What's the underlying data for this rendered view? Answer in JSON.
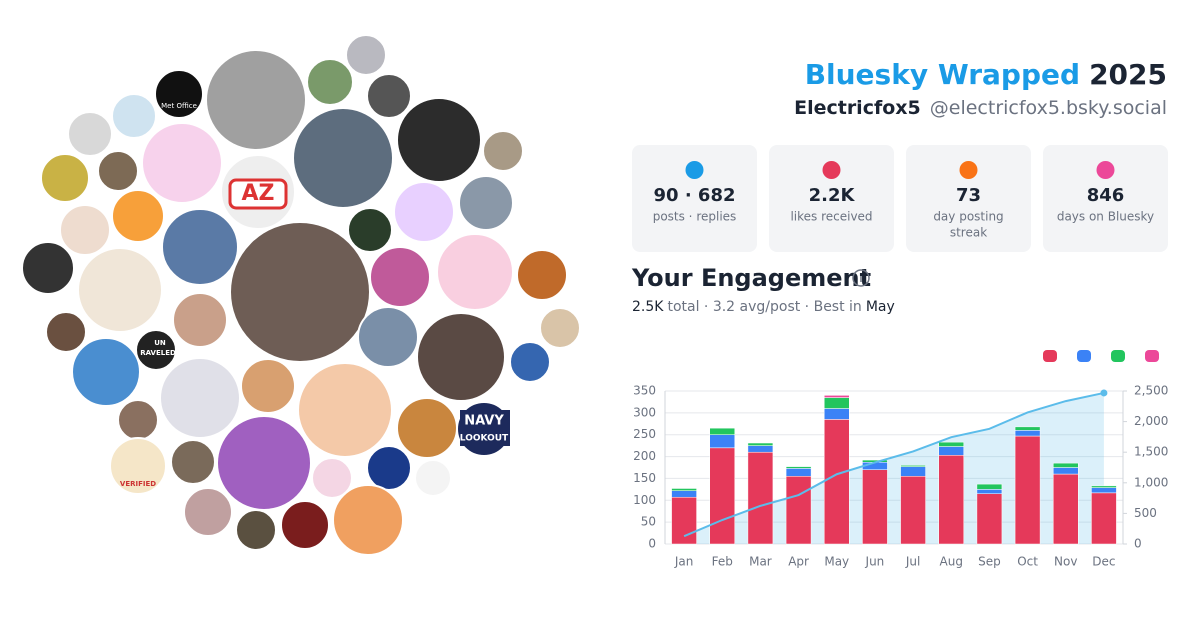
{
  "header": {
    "title": "Bluesky Wrapped",
    "year": "2025",
    "display_name": "Electricfox5",
    "handle": "@electricfox5.bsky.social"
  },
  "avatar_labels": [
    "Met Office",
    "AZ",
    "UN",
    "RAVELED",
    "VERIFIED",
    "NAVY",
    "LOOKOUT"
  ],
  "stats": [
    {
      "value": "90 · 682",
      "label_lines": [
        "posts · replies"
      ]
    },
    {
      "value": "2.2K",
      "label_lines": [
        "likes received"
      ]
    },
    {
      "value": "73",
      "label_lines": [
        "day posting",
        "streak"
      ]
    },
    {
      "value": "846",
      "label_lines": [
        "days on Bluesky"
      ]
    }
  ],
  "engagement": {
    "title": "Your Engagement",
    "total": "2.5K",
    "summary": "total · 3.2 avg/post · Best in",
    "best": "May"
  },
  "chart_data": {
    "type": "bar",
    "stacked": true,
    "categories": [
      "Jan",
      "Feb",
      "Mar",
      "Apr",
      "May",
      "Jun",
      "Jul",
      "Aug",
      "Sep",
      "Oct",
      "Nov",
      "Dec"
    ],
    "series": [
      {
        "color": "#e5395a",
        "values": [
          107,
          220,
          210,
          155,
          285,
          170,
          155,
          203,
          115,
          247,
          160,
          117
        ]
      },
      {
        "color": "#3b82f6",
        "values": [
          15,
          30,
          15,
          18,
          25,
          17,
          22,
          20,
          10,
          13,
          15,
          12
        ]
      },
      {
        "color": "#22c55e",
        "values": [
          5,
          15,
          6,
          4,
          25,
          5,
          3,
          10,
          12,
          8,
          10,
          4
        ]
      },
      {
        "color": "#ec4899",
        "values": [
          0,
          0,
          0,
          0,
          5,
          0,
          0,
          0,
          0,
          0,
          0,
          0
        ]
      },
      {
        "type": "line",
        "axis": "y2",
        "color": "#5bbcea",
        "values": [
          127,
          392,
          623,
          800,
          1140,
          1332,
          1512,
          1745,
          1882,
          2150,
          2335,
          2468
        ]
      }
    ],
    "ylim": [
      0,
      350
    ],
    "yticks": [
      0,
      50,
      100,
      150,
      200,
      250,
      300,
      350
    ],
    "y2lim": [
      0,
      2500
    ],
    "y2ticks": [
      0,
      500,
      {
        "value": 1000,
        "label": "1,000"
      },
      {
        "value": 1500,
        "label": "1,500"
      },
      {
        "value": 2000,
        "label": "2,000"
      },
      {
        "value": 2500,
        "label": "2,500"
      }
    ],
    "grid": true
  }
}
